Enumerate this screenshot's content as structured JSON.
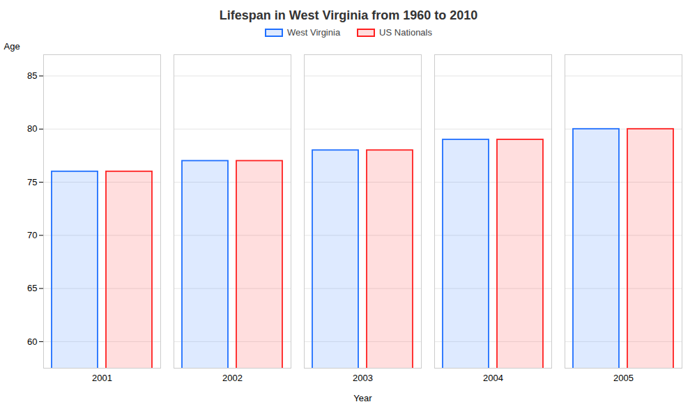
{
  "chart_data": {
    "type": "bar",
    "title": "Lifespan in West Virginia from 1960 to 2010",
    "x_label": "Year",
    "y_label": "Age",
    "categories": [
      "2001",
      "2002",
      "2003",
      "2004",
      "2005"
    ],
    "series": [
      {
        "name": "West Virginia",
        "color": "#1f6fff",
        "values": [
          76,
          77,
          78,
          79,
          80
        ]
      },
      {
        "name": "US Nationals",
        "color": "#ff2020",
        "values": [
          76,
          77,
          78,
          79,
          80
        ]
      }
    ],
    "ylim": [
      57.5,
      87
    ],
    "yticks": [
      60,
      65,
      70,
      75,
      80,
      85
    ],
    "grid": true,
    "legend": "top"
  }
}
